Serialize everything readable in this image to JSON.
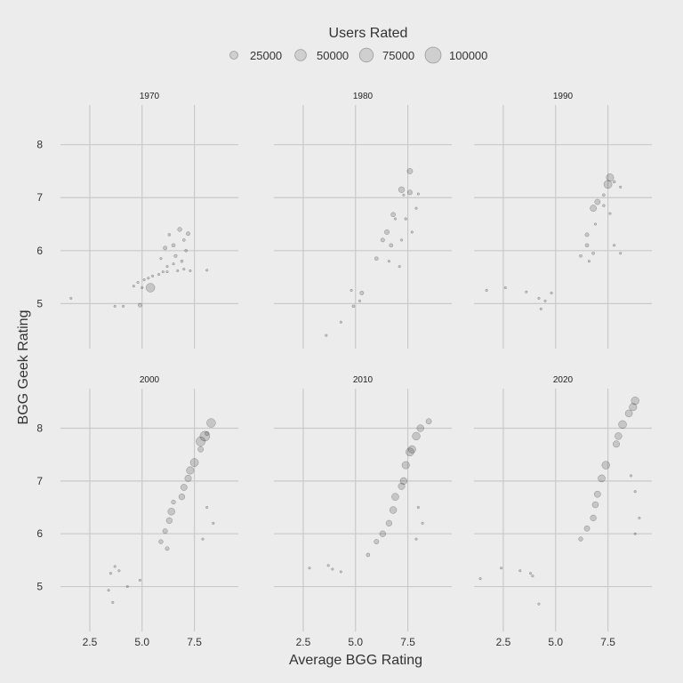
{
  "chart_data": {
    "type": "scatter",
    "title": "",
    "xlabel": "Average BGG Rating",
    "ylabel": "BGG Geek Rating",
    "xlim": [
      1.1,
      9.6
    ],
    "x_ticks": [
      "2.5",
      "5.0",
      "7.5"
    ],
    "x_tick_values": [
      2.5,
      5.0,
      7.5
    ],
    "y_ticks": [
      "5",
      "6",
      "7",
      "8"
    ],
    "y_tick_values": [
      5,
      6,
      7,
      8
    ],
    "grid": true,
    "legend": {
      "title": "Users Rated",
      "position": "top",
      "entries": [
        {
          "label": "25000",
          "value": 25000
        },
        {
          "label": "50000",
          "value": 50000
        },
        {
          "label": "75000",
          "value": 75000
        },
        {
          "label": "100000",
          "value": 100000
        }
      ]
    },
    "facets": [
      {
        "label": "1970",
        "ylim": [
          4.15,
          8.75
        ],
        "points": [
          [
            1.6,
            5.1,
            500
          ],
          [
            3.7,
            4.95,
            300
          ],
          [
            4.1,
            4.95,
            500
          ],
          [
            4.9,
            4.97,
            6000
          ],
          [
            5.4,
            5.3,
            30000
          ],
          [
            8.1,
            5.63,
            300
          ],
          [
            6.1,
            6.05,
            6000
          ],
          [
            6.8,
            6.4,
            7000
          ],
          [
            7.2,
            6.32,
            6000
          ],
          [
            6.3,
            6.3,
            3000
          ],
          [
            6.5,
            6.1,
            5000
          ],
          [
            7.0,
            6.2,
            3000
          ],
          [
            5.9,
            5.85,
            2000
          ],
          [
            6.6,
            5.9,
            4000
          ],
          [
            7.1,
            6.0,
            3000
          ],
          [
            6.9,
            5.8,
            3000
          ],
          [
            6.2,
            5.7,
            2000
          ],
          [
            6.5,
            5.75,
            2000
          ],
          [
            7.0,
            5.65,
            2000
          ],
          [
            7.3,
            5.62,
            500
          ],
          [
            5.8,
            5.55,
            1500
          ],
          [
            6.2,
            5.6,
            1500
          ],
          [
            6.7,
            5.62,
            800
          ],
          [
            4.8,
            5.4,
            800
          ],
          [
            5.1,
            5.45,
            1500
          ],
          [
            5.3,
            5.48,
            1000
          ],
          [
            5.5,
            5.52,
            800
          ],
          [
            4.6,
            5.33,
            500
          ],
          [
            5.0,
            5.3,
            500
          ],
          [
            6.0,
            5.6,
            500
          ]
        ]
      },
      {
        "label": "1980",
        "ylim": [
          4.15,
          8.75
        ],
        "points": [
          [
            3.6,
            4.4,
            500
          ],
          [
            4.3,
            4.65,
            800
          ],
          [
            4.9,
            4.95,
            3000
          ],
          [
            5.2,
            5.05,
            1500
          ],
          [
            4.8,
            5.25,
            800
          ],
          [
            5.3,
            5.2,
            6000
          ],
          [
            7.6,
            7.5,
            12000
          ],
          [
            7.2,
            7.15,
            14000
          ],
          [
            7.6,
            7.1,
            9000
          ],
          [
            8.0,
            7.07,
            2000
          ],
          [
            7.3,
            7.05,
            2000
          ],
          [
            7.9,
            6.8,
            1500
          ],
          [
            6.8,
            6.68,
            8000
          ],
          [
            7.4,
            6.6,
            2500
          ],
          [
            6.9,
            6.6,
            1500
          ],
          [
            7.7,
            6.35,
            1500
          ],
          [
            7.2,
            6.2,
            1500
          ],
          [
            6.5,
            6.35,
            9000
          ],
          [
            6.3,
            6.2,
            6000
          ],
          [
            6.7,
            6.1,
            5000
          ],
          [
            6.0,
            5.85,
            5000
          ],
          [
            6.6,
            5.8,
            2000
          ],
          [
            7.1,
            5.7,
            2000
          ]
        ]
      },
      {
        "label": "1990",
        "ylim": [
          4.15,
          8.75
        ],
        "points": [
          [
            1.7,
            5.25,
            500
          ],
          [
            2.6,
            5.3,
            500
          ],
          [
            3.6,
            5.22,
            500
          ],
          [
            4.2,
            5.1,
            500
          ],
          [
            4.5,
            5.05,
            800
          ],
          [
            4.3,
            4.9,
            500
          ],
          [
            4.8,
            5.2,
            500
          ],
          [
            7.6,
            7.38,
            22000
          ],
          [
            7.5,
            7.25,
            26000
          ],
          [
            7.8,
            7.3,
            3000
          ],
          [
            8.1,
            7.2,
            1500
          ],
          [
            7.3,
            7.05,
            3000
          ],
          [
            7.0,
            6.92,
            12000
          ],
          [
            6.8,
            6.8,
            16000
          ],
          [
            7.3,
            6.85,
            2500
          ],
          [
            7.6,
            6.7,
            1500
          ],
          [
            6.9,
            6.5,
            1500
          ],
          [
            7.8,
            6.1,
            1500
          ],
          [
            8.1,
            5.95,
            500
          ],
          [
            6.5,
            6.3,
            6000
          ],
          [
            6.5,
            6.1,
            5000
          ],
          [
            6.8,
            5.95,
            3000
          ],
          [
            6.2,
            5.9,
            3000
          ],
          [
            6.6,
            5.8,
            2000
          ]
        ]
      },
      {
        "label": "2000",
        "ylim": [
          4.15,
          8.75
        ],
        "points": [
          [
            3.4,
            4.93,
            500
          ],
          [
            3.6,
            4.7,
            800
          ],
          [
            4.3,
            5.0,
            800
          ],
          [
            4.9,
            5.12,
            1000
          ],
          [
            3.5,
            5.25,
            500
          ],
          [
            3.9,
            5.3,
            500
          ],
          [
            3.7,
            5.38,
            500
          ],
          [
            8.3,
            8.1,
            30000
          ],
          [
            8.0,
            7.85,
            38000
          ],
          [
            7.8,
            7.75,
            34000
          ],
          [
            8.1,
            7.9,
            7000
          ],
          [
            7.8,
            7.6,
            12000
          ],
          [
            7.5,
            7.35,
            26000
          ],
          [
            7.3,
            7.2,
            22000
          ],
          [
            7.2,
            7.05,
            17000
          ],
          [
            7.0,
            6.88,
            16000
          ],
          [
            6.9,
            6.7,
            14000
          ],
          [
            6.5,
            6.6,
            7000
          ],
          [
            6.4,
            6.42,
            19000
          ],
          [
            6.3,
            6.25,
            14000
          ],
          [
            6.1,
            6.05,
            9000
          ],
          [
            5.9,
            5.85,
            7000
          ],
          [
            6.2,
            5.72,
            6000
          ],
          [
            8.1,
            6.5,
            500
          ],
          [
            8.4,
            6.2,
            500
          ],
          [
            7.9,
            5.9,
            500
          ]
        ]
      },
      {
        "label": "2010",
        "ylim": [
          4.15,
          8.75
        ],
        "points": [
          [
            2.8,
            5.35,
            500
          ],
          [
            3.7,
            5.4,
            500
          ],
          [
            3.9,
            5.33,
            800
          ],
          [
            4.3,
            5.28,
            800
          ],
          [
            8.5,
            8.13,
            12000
          ],
          [
            8.1,
            8.0,
            19000
          ],
          [
            7.9,
            7.85,
            24000
          ],
          [
            7.6,
            7.55,
            26000
          ],
          [
            7.7,
            7.6,
            22000
          ],
          [
            7.4,
            7.3,
            22000
          ],
          [
            7.3,
            7.0,
            19000
          ],
          [
            7.2,
            6.9,
            17000
          ],
          [
            6.9,
            6.7,
            20000
          ],
          [
            6.8,
            6.45,
            19000
          ],
          [
            6.6,
            6.2,
            14000
          ],
          [
            6.3,
            6.0,
            14000
          ],
          [
            6.0,
            5.85,
            9000
          ],
          [
            5.6,
            5.6,
            5000
          ],
          [
            8.0,
            6.5,
            1000
          ],
          [
            8.2,
            6.2,
            800
          ],
          [
            7.9,
            5.9,
            800
          ]
        ]
      },
      {
        "label": "2020",
        "ylim": [
          4.15,
          8.75
        ],
        "points": [
          [
            1.4,
            5.15,
            500
          ],
          [
            2.4,
            5.35,
            500
          ],
          [
            3.3,
            5.3,
            500
          ],
          [
            3.8,
            5.25,
            800
          ],
          [
            3.9,
            5.2,
            500
          ],
          [
            4.2,
            4.67,
            800
          ],
          [
            8.8,
            8.52,
            24000
          ],
          [
            8.7,
            8.4,
            22000
          ],
          [
            8.5,
            8.28,
            20000
          ],
          [
            8.2,
            8.07,
            25000
          ],
          [
            8.0,
            7.85,
            19000
          ],
          [
            7.9,
            7.7,
            17000
          ],
          [
            7.4,
            7.3,
            24000
          ],
          [
            7.2,
            7.05,
            20000
          ],
          [
            7.0,
            6.75,
            16000
          ],
          [
            6.9,
            6.55,
            15000
          ],
          [
            6.8,
            6.3,
            14000
          ],
          [
            6.5,
            6.1,
            12000
          ],
          [
            6.2,
            5.9,
            7000
          ],
          [
            8.6,
            7.1,
            1000
          ],
          [
            8.8,
            6.8,
            800
          ],
          [
            9.0,
            6.3,
            800
          ],
          [
            8.8,
            6.0,
            500
          ]
        ]
      }
    ]
  }
}
